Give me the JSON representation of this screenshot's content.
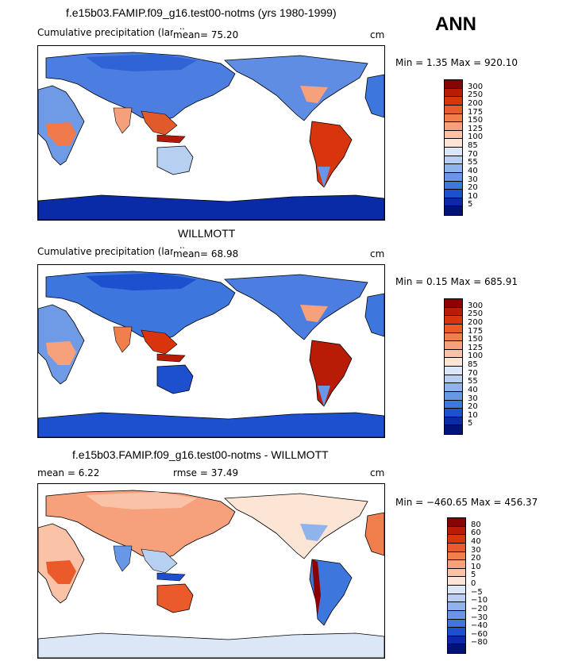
{
  "season": "ANN",
  "panels": [
    {
      "title": "f.e15b03.FAMIP.f09_g16.test00-notms (yrs 1980-1999)",
      "subtitle_left": "Cumulative precipitation (land)",
      "stat_text": "mean=   75.20",
      "units": "cm",
      "minmax": "Min =   1.35 Max = 920.10",
      "colorbar_labels": [
        "300",
        "250",
        "200",
        "175",
        "150",
        "125",
        "100",
        "85",
        "70",
        "55",
        "40",
        "30",
        "20",
        "10",
        "5"
      ],
      "colorbar_colors": [
        "#8b0000",
        "#b81b06",
        "#d8340d",
        "#ea5a2b",
        "#f17f4e",
        "#f6a07c",
        "#fac3a8",
        "#fde5d6",
        "#dbe7f7",
        "#b7cff1",
        "#8fb4ec",
        "#6797e6",
        "#3d76dc",
        "#1c50cf",
        "#0a2ba8",
        "#00137a"
      ]
    },
    {
      "title": "WILLMOTT",
      "subtitle_left": "Cumulative precipitation (land)",
      "stat_text": "mean=   68.98",
      "units": "cm",
      "minmax": "Min =   0.15 Max = 685.91",
      "colorbar_labels": [
        "300",
        "250",
        "200",
        "175",
        "150",
        "125",
        "100",
        "85",
        "70",
        "55",
        "40",
        "30",
        "20",
        "10",
        "5"
      ],
      "colorbar_colors": [
        "#8b0000",
        "#b81b06",
        "#d8340d",
        "#ea5a2b",
        "#f17f4e",
        "#f6a07c",
        "#fac3a8",
        "#fde5d6",
        "#dbe7f7",
        "#b7cff1",
        "#8fb4ec",
        "#6797e6",
        "#3d76dc",
        "#1c50cf",
        "#0a2ba8",
        "#00137a"
      ]
    },
    {
      "title": "f.e15b03.FAMIP.f09_g16.test00-notms - WILLMOTT",
      "subtitle_left": "mean =    6.22",
      "stat_text": "rmse =   37.49",
      "units": "cm",
      "minmax": "Min = −460.65 Max = 456.37",
      "colorbar_labels": [
        "80",
        "60",
        "40",
        "30",
        "20",
        "10",
        "5",
        "0",
        "−5",
        "−10",
        "−20",
        "−30",
        "−40",
        "−60",
        "−80"
      ],
      "colorbar_colors": [
        "#8b0000",
        "#b81b06",
        "#d8340d",
        "#ea5a2b",
        "#f17f4e",
        "#f6a07c",
        "#fac3a8",
        "#fde5d6",
        "#dbe7f7",
        "#b7cff1",
        "#8fb4ec",
        "#6797e6",
        "#3d76dc",
        "#1c50cf",
        "#0a2ba8",
        "#00137a"
      ]
    }
  ]
}
